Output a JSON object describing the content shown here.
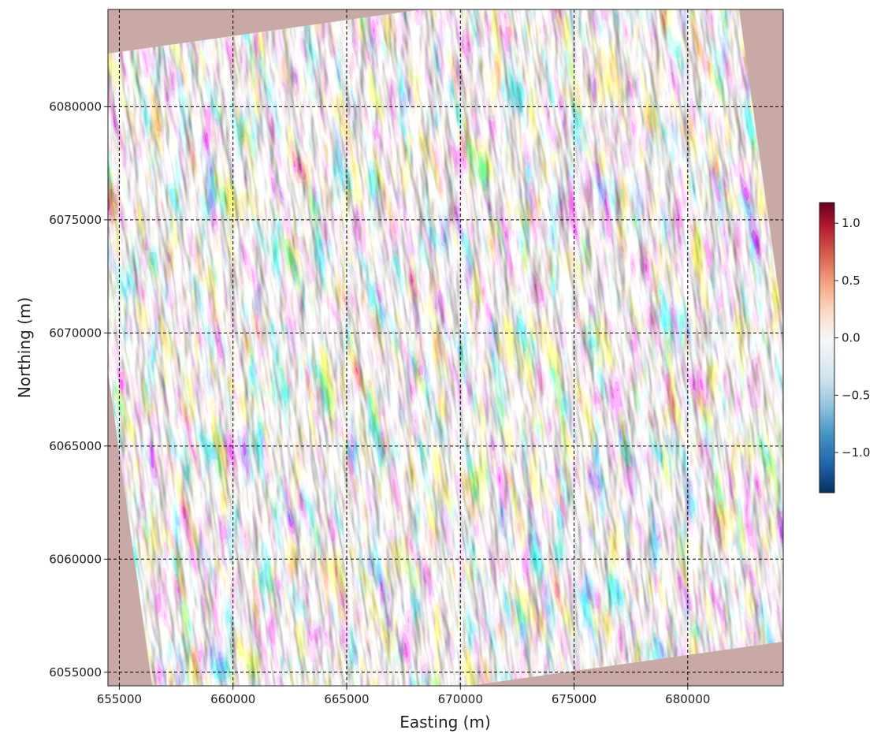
{
  "chart_data": {
    "type": "heatmap",
    "title": "",
    "xlabel": "Easting (m)",
    "ylabel": "Northing (m)",
    "xlim": [
      654500,
      684200
    ],
    "ylim": [
      6054400,
      6084300
    ],
    "grid": true,
    "grid_style": "dashed",
    "x_ticks": [
      655000,
      660000,
      665000,
      670000,
      675000,
      680000
    ],
    "x_tick_labels": [
      "655000",
      "660000",
      "665000",
      "670000",
      "675000",
      "680000"
    ],
    "y_ticks": [
      6055000,
      6060000,
      6065000,
      6070000,
      6075000,
      6080000
    ],
    "y_tick_labels": [
      "6055000",
      "6060000",
      "6065000",
      "6070000",
      "6075000",
      "6080000"
    ],
    "colorbar": {
      "colormap": "RdBu_r (diverging blue-white-red)",
      "range": [
        -1.35,
        1.18
      ],
      "ticks": [
        -1.0,
        -0.5,
        0.0,
        0.5,
        1.0
      ],
      "tick_labels": [
        "−1.0",
        "−0.5",
        "0.0",
        "0.5",
        "1.0"
      ],
      "colors": [
        "#053061",
        "#2166ac",
        "#4393c3",
        "#92c5de",
        "#d1e5f0",
        "#f7f7f7",
        "#fddbc7",
        "#f4a582",
        "#d6604d",
        "#b2182b",
        "#67001f"
      ]
    },
    "description_values": "Shaded-relief magnetic derivative grid; dominant NNW-SSE striped anomalies"
  }
}
